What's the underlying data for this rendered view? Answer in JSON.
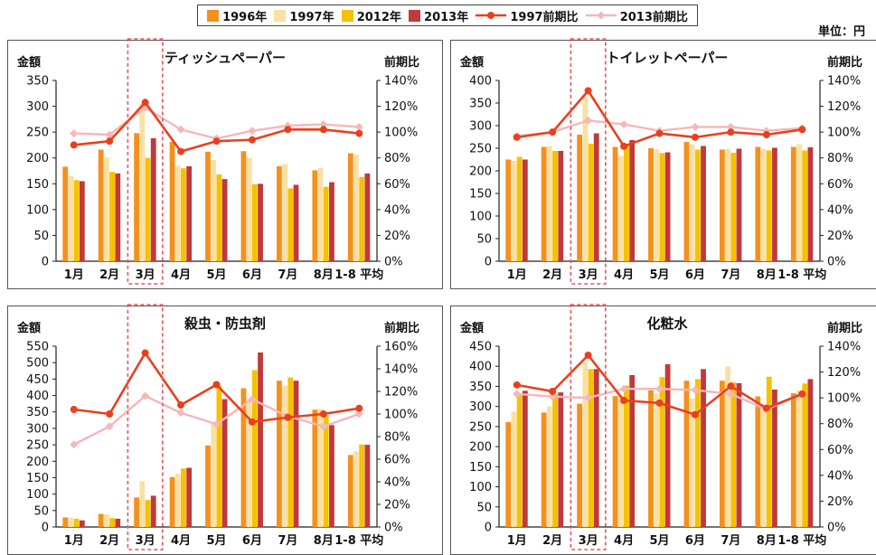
{
  "legend": {
    "items": [
      {
        "label": "1996年",
        "kind": "bar",
        "color": "#f5901e"
      },
      {
        "label": "1997年",
        "kind": "bar",
        "color": "#f9e0a4"
      },
      {
        "label": "2012年",
        "kind": "bar",
        "color": "#f5c100"
      },
      {
        "label": "2013年",
        "kind": "bar",
        "color": "#c0393b"
      },
      {
        "label": "1997前期比",
        "kind": "line",
        "color": "#e8401f"
      },
      {
        "label": "2013前期比",
        "kind": "line",
        "color": "#f5b7b9"
      }
    ]
  },
  "unit_label": "単位：円",
  "axis_label_left": "金額",
  "axis_label_right": "前期比",
  "colors": {
    "bar1996": "#f5901e",
    "bar1997": "#f9e0a4",
    "bar2012": "#f5c100",
    "bar2013": "#c0393b",
    "line1997": "#e8401f",
    "line2013": "#f5b7b9",
    "highlight": "#e8555a"
  },
  "chart_data": [
    {
      "type": "bar",
      "title": "ティッシュペーパー",
      "ylabel": "金額",
      "y2label": "前期比",
      "categories": [
        "1月",
        "2月",
        "3月",
        "4月",
        "5月",
        "6月",
        "7月",
        "8月",
        "1-8 平均"
      ],
      "highlight_category": "3月",
      "ylim": [
        0,
        350
      ],
      "yticks": [
        0,
        50,
        100,
        150,
        200,
        250,
        300,
        350
      ],
      "y2lim": [
        0,
        140
      ],
      "y2ticks": [
        "0%",
        "20%",
        "40%",
        "60%",
        "80%",
        "100%",
        "120%",
        "140%"
      ],
      "series": [
        {
          "name": "1996年",
          "values": [
            183,
            216,
            248,
            231,
            212,
            213,
            184,
            176,
            209
          ]
        },
        {
          "name": "1997年",
          "values": [
            165,
            201,
            305,
            185,
            196,
            200,
            188,
            181,
            207
          ]
        },
        {
          "name": "2012年",
          "values": [
            157,
            173,
            200,
            180,
            168,
            149,
            141,
            144,
            163
          ]
        },
        {
          "name": "2013年",
          "values": [
            155,
            170,
            238,
            184,
            159,
            150,
            148,
            153,
            170
          ]
        }
      ],
      "lines": [
        {
          "name": "1997前期比",
          "values": [
            90,
            93,
            123,
            85,
            93,
            94,
            102,
            102,
            99
          ]
        },
        {
          "name": "2013前期比",
          "values": [
            99,
            98,
            119,
            102,
            95,
            101,
            105,
            106,
            104
          ]
        }
      ]
    },
    {
      "type": "bar",
      "title": "トイレットペーパー",
      "ylabel": "金額",
      "y2label": "前期比",
      "categories": [
        "1月",
        "2月",
        "3月",
        "4月",
        "5月",
        "6月",
        "7月",
        "8月",
        "1-8 平均"
      ],
      "highlight_category": "3月",
      "ylim": [
        0,
        400
      ],
      "yticks": [
        0,
        50,
        100,
        150,
        200,
        250,
        300,
        350,
        400
      ],
      "y2lim": [
        0,
        140
      ],
      "y2ticks": [
        "0%",
        "20%",
        "40%",
        "60%",
        "80%",
        "100%",
        "120%",
        "140%"
      ],
      "series": [
        {
          "name": "1996年",
          "values": [
            225,
            253,
            280,
            253,
            250,
            264,
            247,
            253,
            253
          ]
        },
        {
          "name": "1997年",
          "values": [
            222,
            255,
            365,
            233,
            248,
            259,
            248,
            248,
            259
          ]
        },
        {
          "name": "2012年",
          "values": [
            231,
            244,
            260,
            260,
            239,
            247,
            240,
            245,
            245
          ]
        },
        {
          "name": "2013年",
          "values": [
            225,
            244,
            283,
            268,
            241,
            255,
            249,
            251,
            252
          ]
        }
      ],
      "lines": [
        {
          "name": "1997前期比",
          "values": [
            96,
            100,
            132,
            89,
            99,
            96,
            100,
            98,
            102
          ]
        },
        {
          "name": "2013前期比",
          "values": [
            97,
            100,
            109,
            106,
            101,
            104,
            104,
            101,
            103
          ]
        }
      ]
    },
    {
      "type": "bar",
      "title": "殺虫・防虫剤",
      "ylabel": "金額",
      "y2label": "前期比",
      "categories": [
        "1月",
        "2月",
        "3月",
        "4月",
        "5月",
        "6月",
        "7月",
        "8月",
        "1-8 平均"
      ],
      "highlight_category": "3月",
      "ylim": [
        0,
        550
      ],
      "yticks": [
        0,
        50,
        100,
        150,
        200,
        250,
        300,
        350,
        400,
        450,
        500,
        550
      ],
      "y2lim": [
        0,
        160
      ],
      "y2ticks": [
        "0%",
        "20%",
        "40%",
        "60%",
        "80%",
        "100%",
        "120%",
        "140%",
        "160%"
      ],
      "series": [
        {
          "name": "1996年",
          "values": [
            29,
            40,
            90,
            152,
            248,
            422,
            445,
            357,
            219
          ]
        },
        {
          "name": "1997年",
          "values": [
            28,
            38,
            139,
            162,
            315,
            390,
            430,
            360,
            230
          ]
        },
        {
          "name": "2012年",
          "values": [
            25,
            27,
            82,
            178,
            430,
            477,
            455,
            340,
            251
          ]
        },
        {
          "name": "2013年",
          "values": [
            20,
            25,
            95,
            180,
            389,
            531,
            445,
            310,
            250
          ]
        }
      ],
      "lines": [
        {
          "name": "1997前期比",
          "values": [
            104,
            100,
            154,
            108,
            126,
            93,
            97,
            100,
            105
          ]
        },
        {
          "name": "2013前期比",
          "values": [
            73,
            89,
            116,
            101,
            91,
            113,
            98,
            89,
            100
          ]
        }
      ]
    },
    {
      "type": "bar",
      "title": "化粧水",
      "ylabel": "金額",
      "y2label": "前期比",
      "categories": [
        "1月",
        "2月",
        "3月",
        "4月",
        "5月",
        "6月",
        "7月",
        "8月",
        "1-8 平均"
      ],
      "highlight_category": "3月",
      "ylim": [
        0,
        450
      ],
      "yticks": [
        0,
        50,
        100,
        150,
        200,
        250,
        300,
        350,
        400,
        450
      ],
      "y2lim": [
        0,
        140
      ],
      "y2ticks": [
        "0%",
        "20%",
        "40%",
        "60%",
        "80%",
        "100%",
        "120%",
        "140%"
      ],
      "series": [
        {
          "name": "1996年",
          "values": [
            261,
            285,
            307,
            326,
            340,
            364,
            364,
            325,
            333
          ]
        },
        {
          "name": "1997年",
          "values": [
            287,
            300,
            410,
            329,
            332,
            320,
            400,
            300,
            340
          ]
        },
        {
          "name": "2012年",
          "values": [
            330,
            330,
            393,
            352,
            373,
            368,
            360,
            374,
            357
          ]
        },
        {
          "name": "2013年",
          "values": [
            339,
            335,
            393,
            378,
            405,
            393,
            358,
            342,
            368
          ]
        }
      ],
      "lines": [
        {
          "name": "1997前期比",
          "values": [
            110,
            105,
            133,
            98,
            96,
            87,
            109,
            92,
            103
          ]
        },
        {
          "name": "2013前期比",
          "values": [
            103,
            101,
            100,
            107,
            107,
            106,
            103,
            91,
            103
          ]
        }
      ]
    }
  ]
}
